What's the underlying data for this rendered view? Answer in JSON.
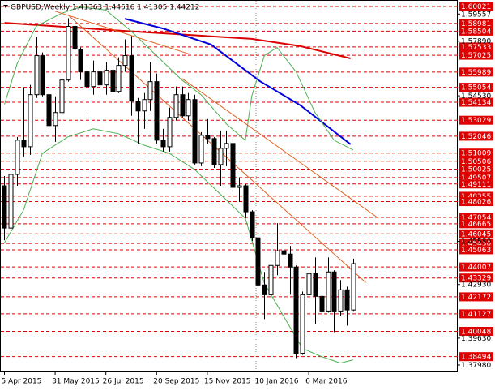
{
  "chart_data": {
    "type": "candlestick",
    "title": "GBPUSD,Weekly  1.41363 1.44516 1.41305 1.44212",
    "ylim": [
      1.3758,
      1.6042
    ],
    "xlim": [
      -0.7,
      71.5
    ],
    "xticks": [
      {
        "value": 0,
        "label": "5 Apr 2015"
      },
      {
        "value": 8,
        "label": "31 May 2015"
      },
      {
        "value": 16,
        "label": "26 Jul 2015"
      },
      {
        "value": 24,
        "label": "20 Sep 2015"
      },
      {
        "value": 32,
        "label": "15 Nov 2015"
      },
      {
        "value": 40,
        "label": "10 Jan 2016"
      },
      {
        "value": 48,
        "label": "6 Mar 2016"
      }
    ],
    "yticks": [
      1.59557,
      {
        "value": 1.5789,
        "label": "1.57890"
      },
      {
        "value": 1.5453,
        "label": "1.54530"
      },
      {
        "value": 1.4558,
        "label": "1.45580"
      },
      {
        "value": 1.4293,
        "label": "1.42930"
      },
      {
        "value": 1.3963,
        "label": "1.39630"
      },
      {
        "value": 1.3798,
        "label": "1.37980"
      }
    ],
    "levels": [
      1.60021,
      1.58981,
      1.58504,
      1.57533,
      1.57025,
      1.55989,
      1.55054,
      1.54134,
      1.53029,
      1.52046,
      1.51009,
      1.50506,
      1.50025,
      1.49507,
      1.49111,
      1.48355,
      1.48026,
      1.47054,
      1.46665,
      1.46045,
      {
        "value": 1.4545,
        "label": "1.45450"
      },
      1.45063,
      1.44007,
      1.43329,
      1.42172,
      1.41127,
      1.40048,
      1.38494
    ],
    "level_color": "#e00000",
    "open": [
      1.49,
      1.464,
      1.497,
      1.518,
      1.514,
      1.546,
      1.57,
      1.546,
      1.527,
      1.535,
      1.555,
      1.588,
      1.574,
      1.56,
      1.551,
      1.56,
      1.552,
      1.561,
      1.548,
      1.564,
      1.57,
      1.542,
      1.536,
      1.543,
      1.554,
      1.518,
      1.514,
      1.532,
      1.546,
      1.533,
      1.543,
      1.504,
      1.521,
      1.519,
      1.503,
      1.513,
      1.516,
      1.489,
      1.49,
      1.474,
      1.458,
      1.429,
      1.423,
      1.441,
      1.45,
      1.448,
      1.44,
      1.387,
      1.423,
      1.436,
      1.422,
      1.413,
      1.437,
      1.413,
      1.426,
      1.41363
    ],
    "high": [
      1.496,
      1.5,
      1.52,
      1.55,
      1.552,
      1.5815,
      1.572,
      1.549,
      1.545,
      1.56,
      1.593,
      1.593,
      1.575,
      1.562,
      1.567,
      1.564,
      1.566,
      1.569,
      1.569,
      1.58,
      1.582,
      1.544,
      1.547,
      1.566,
      1.559,
      1.525,
      1.538,
      1.551,
      1.551,
      1.547,
      1.546,
      1.523,
      1.531,
      1.52,
      1.524,
      1.524,
      1.519,
      1.495,
      1.491,
      1.475,
      1.46,
      1.437,
      1.442,
      1.467,
      1.456,
      1.453,
      1.441,
      1.425,
      1.437,
      1.446,
      1.425,
      1.446,
      1.438,
      1.432,
      1.428,
      1.44516
    ],
    "low": [
      1.4565,
      1.46,
      1.49,
      1.508,
      1.509,
      1.544,
      1.545,
      1.517,
      1.517,
      1.525,
      1.554,
      1.567,
      1.555,
      1.533,
      1.546,
      1.546,
      1.546,
      1.544,
      1.547,
      1.56,
      1.533,
      1.516,
      1.525,
      1.536,
      1.516,
      1.511,
      1.511,
      1.53,
      1.532,
      1.53,
      1.503,
      1.502,
      1.516,
      1.501,
      1.49,
      1.502,
      1.487,
      1.48,
      1.47,
      1.456,
      1.427,
      1.408,
      1.415,
      1.435,
      1.436,
      1.423,
      1.384,
      1.386,
      1.417,
      1.405,
      1.406,
      1.412,
      1.4,
      1.41,
      1.404,
      1.41305
    ],
    "close": [
      1.464,
      1.497,
      1.518,
      1.514,
      1.546,
      1.57,
      1.546,
      1.527,
      1.535,
      1.555,
      1.588,
      1.574,
      1.56,
      1.551,
      1.56,
      1.552,
      1.561,
      1.548,
      1.564,
      1.57,
      1.542,
      1.536,
      1.543,
      1.554,
      1.518,
      1.514,
      1.532,
      1.546,
      1.533,
      1.543,
      1.504,
      1.521,
      1.519,
      1.503,
      1.513,
      1.516,
      1.489,
      1.49,
      1.474,
      1.458,
      1.429,
      1.423,
      1.441,
      1.45,
      1.448,
      1.44,
      1.387,
      1.423,
      1.436,
      1.422,
      1.413,
      1.437,
      1.413,
      1.426,
      1.41363,
      1.44212
    ],
    "lines": [
      {
        "color": "#dd0000",
        "x": [
          0,
          18.5,
          39,
          46.7,
          54.6
        ],
        "values": [
          1.5902,
          1.5853,
          1.5803,
          1.5758,
          1.5683
        ]
      },
      {
        "color": "#0000dd",
        "x": [
          19,
          25,
          32.6,
          40.3,
          46.7,
          54.6
        ],
        "values": [
          1.5927,
          1.5867,
          1.5768,
          1.5543,
          1.5394,
          1.5155
        ]
      },
      {
        "color": "#4caf50",
        "x": [
          0,
          2,
          5,
          9,
          12,
          16,
          20,
          24,
          28,
          31,
          35,
          38,
          39,
          41,
          43,
          46,
          49,
          52,
          55
        ],
        "values": [
          1.54,
          1.565,
          1.588,
          1.596,
          1.6,
          1.598,
          1.585,
          1.57,
          1.555,
          1.546,
          1.528,
          1.518,
          1.545,
          1.57,
          1.575,
          1.56,
          1.535,
          1.518,
          1.512
        ]
      },
      {
        "color": "#4caf50",
        "x": [
          0,
          3,
          6,
          10,
          14,
          18,
          22,
          26,
          30,
          34,
          38,
          41,
          44,
          47,
          50,
          53,
          55
        ],
        "values": [
          1.455,
          1.475,
          1.51,
          1.52,
          1.525,
          1.522,
          1.515,
          1.51,
          1.5,
          1.485,
          1.47,
          1.43,
          1.41,
          1.39,
          1.385,
          1.381,
          1.383
        ]
      },
      {
        "color": "#e06020",
        "x": [
          8,
          29
        ],
        "values": [
          1.5973,
          1.5712
        ]
      },
      {
        "color": "#e06020",
        "x": [
          10,
          57
        ],
        "values": [
          1.5952,
          1.4305
        ]
      },
      {
        "color": "#e06020",
        "x": [
          28,
          59
        ],
        "values": [
          1.556,
          1.47
        ]
      }
    ]
  }
}
